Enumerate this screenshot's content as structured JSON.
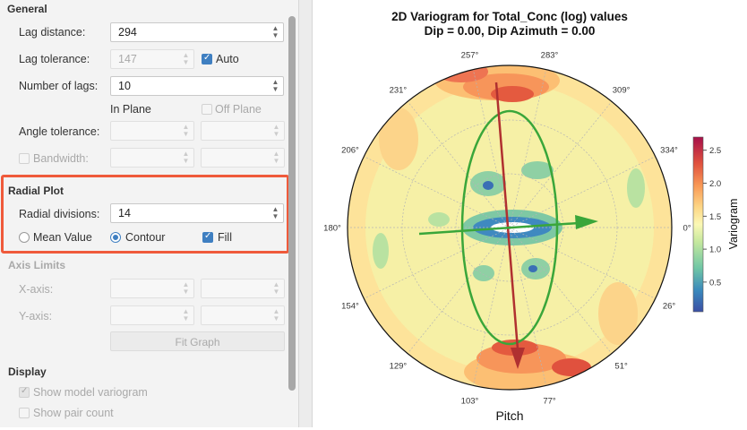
{
  "general": {
    "title": "General",
    "lag_distance": {
      "label": "Lag distance:",
      "value": "294"
    },
    "lag_tolerance": {
      "label": "Lag tolerance:",
      "value": "147",
      "auto_label": "Auto",
      "auto_checked": true
    },
    "number_of_lags": {
      "label": "Number of lags:",
      "value": "10"
    },
    "in_plane": "In Plane",
    "off_plane": "Off Plane",
    "angle_tolerance": {
      "label": "Angle tolerance:"
    },
    "bandwidth": {
      "label": "Bandwidth:"
    }
  },
  "radial_plot": {
    "title": "Radial Plot",
    "radial_divisions": {
      "label": "Radial divisions:",
      "value": "14"
    },
    "mean_value": "Mean Value",
    "contour": "Contour",
    "fill": "Fill"
  },
  "axis_limits": {
    "title": "Axis Limits",
    "x_axis": "X-axis:",
    "y_axis": "Y-axis:",
    "fit_graph": "Fit Graph"
  },
  "display": {
    "title": "Display",
    "show_model_variogram": "Show model variogram",
    "show_pair_count": "Show pair count"
  },
  "plot": {
    "title_line1": "2D Variogram for Total_Conc (log) values",
    "title_line2": "Dip = 0.00, Dip Azimuth = 0.00",
    "xlabel": "Pitch",
    "angles": [
      "0°",
      "26°",
      "51°",
      "77°",
      "103°",
      "129°",
      "154°",
      "180°",
      "206°",
      "231°",
      "257°",
      "283°",
      "309°",
      "334°"
    ],
    "colorbar_label": "Variogram",
    "colorbar_ticks": [
      "0.5",
      "1.0",
      "1.5",
      "2.0",
      "2.5"
    ],
    "colors": {
      "major_axis": "#b03030",
      "minor_axis": "#3aa63a",
      "ellipse": "#3aa63a"
    }
  },
  "chart_data": {
    "type": "heatmap",
    "title": "2D Variogram for Total_Conc (log) values",
    "subtitle": "Dip = 0.00, Dip Azimuth = 0.00",
    "xlabel": "Pitch",
    "angle_ticks_deg": [
      0,
      26,
      51,
      77,
      103,
      129,
      154,
      180,
      206,
      231,
      257,
      283,
      309,
      334
    ],
    "colorbar": {
      "label": "Variogram",
      "ticks": [
        0.5,
        1.0,
        1.5,
        2.0,
        2.5
      ],
      "range": [
        0.05,
        2.7
      ],
      "colormap": "Spectral_r"
    }
  }
}
